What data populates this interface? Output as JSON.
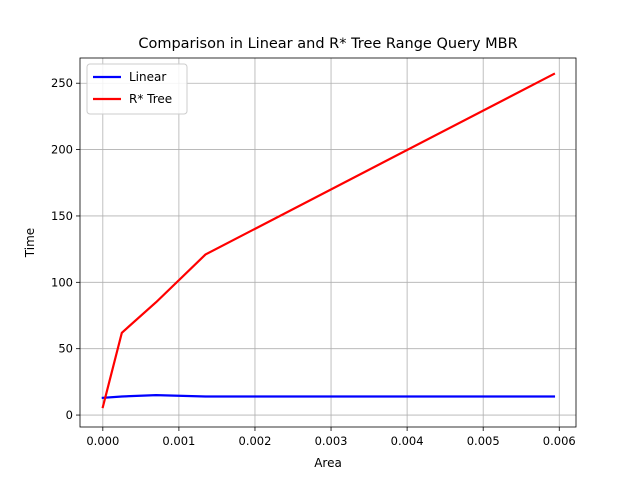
{
  "chart_data": {
    "type": "line",
    "title": "Comparison in Linear and R* Tree Range Query MBR",
    "xlabel": "Area",
    "ylabel": "Time",
    "xlim": [
      -0.0003,
      0.00622
    ],
    "ylim": [
      -9,
      269
    ],
    "xticks": [
      0,
      0.001,
      0.002,
      0.003,
      0.004,
      0.005,
      0.006
    ],
    "xtick_labels": [
      "0.000",
      "0.001",
      "0.002",
      "0.003",
      "0.004",
      "0.005",
      "0.006"
    ],
    "yticks": [
      0,
      50,
      100,
      150,
      200,
      250
    ],
    "ytick_labels": [
      "0",
      "50",
      "100",
      "150",
      "200",
      "250"
    ],
    "grid": true,
    "legend_position": "top-left",
    "series": [
      {
        "name": "Linear",
        "color": "#0000ff",
        "x": [
          0,
          0.00025,
          0.0007,
          0.00135,
          0.00593
        ],
        "y": [
          13,
          14,
          15,
          14,
          14
        ]
      },
      {
        "name": "R* Tree",
        "color": "#ff0000",
        "x": [
          0,
          0.00025,
          0.0007,
          0.00135,
          0.00593
        ],
        "y": [
          6,
          62,
          85,
          121,
          257
        ]
      }
    ]
  }
}
